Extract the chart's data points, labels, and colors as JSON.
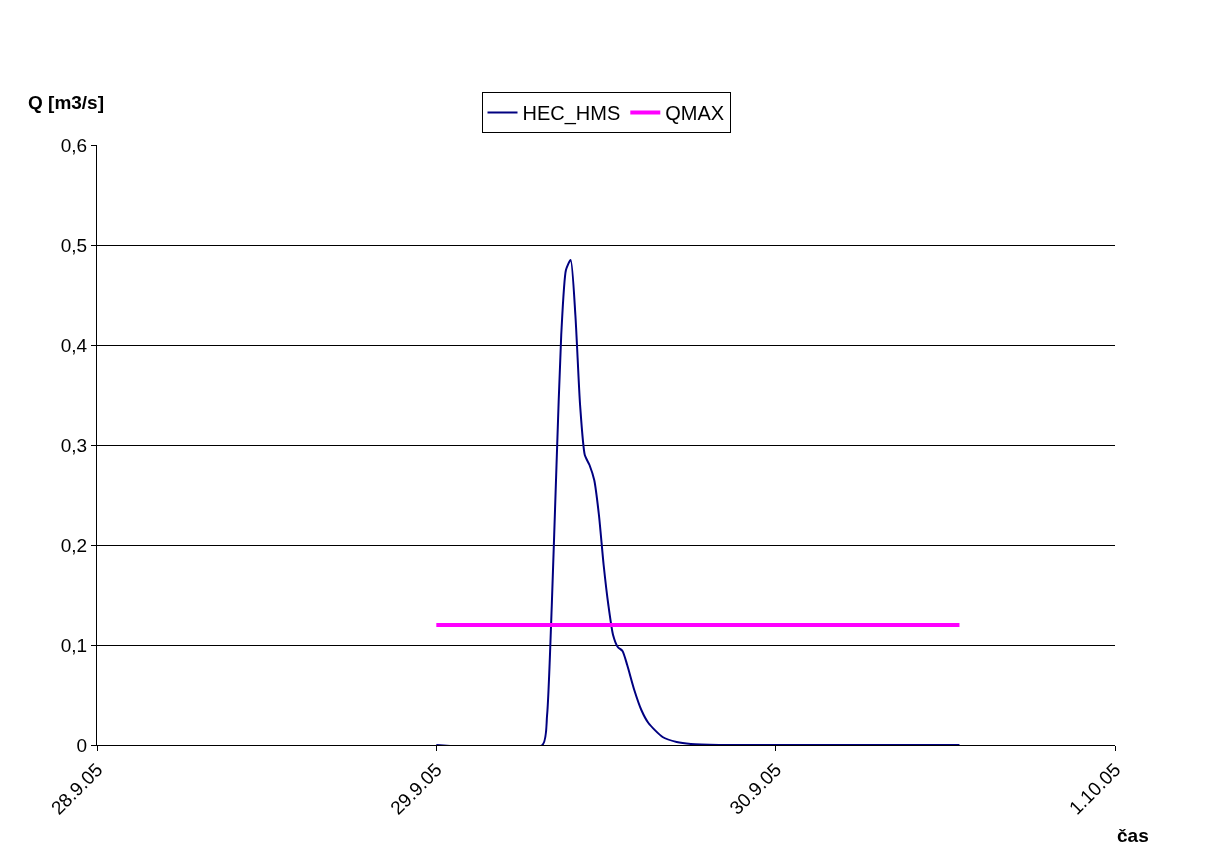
{
  "chart_data": {
    "type": "line",
    "xlabel": "čas",
    "ylabel": "Q [m3/s]",
    "series": [
      {
        "name": "HEC_HMS",
        "color": "#000080",
        "x": [
          "--09-29T00:00",
          "--09-29T07:30",
          "--09-29T07:50",
          "--09-29T08:10",
          "--09-29T08:30",
          "--09-29T08:50",
          "--09-29T09:10",
          "--09-29T09:30",
          "--09-29T09:50",
          "--09-29T10:10",
          "--09-29T10:30",
          "--09-29T10:50",
          "--09-29T11:10",
          "--09-29T11:30",
          "--09-29T11:50",
          "--09-29T12:10",
          "--09-29T12:30",
          "--09-29T12:50",
          "--09-29T13:10",
          "--09-29T13:30",
          "--09-29T14:00",
          "--09-29T14:30",
          "--09-29T15:00",
          "--09-29T16:00",
          "--09-29T17:00",
          "--09-29T18:00",
          "--09-29T20:00",
          "--09-30T13:00"
        ],
        "values": [
          0,
          0,
          0.03,
          0.14,
          0.28,
          0.41,
          0.475,
          0.485,
          0.43,
          0.34,
          0.29,
          0.28,
          0.265,
          0.23,
          0.18,
          0.14,
          0.11,
          0.098,
          0.094,
          0.08,
          0.055,
          0.035,
          0.022,
          0.008,
          0.003,
          0.001,
          0,
          0
        ]
      },
      {
        "name": "QMAX",
        "color": "#ff00ff",
        "x": [
          "--09-29T00:00",
          "--09-30T13:00"
        ],
        "values": [
          0.12,
          0.12
        ]
      }
    ],
    "xlim": [
      "--09-28",
      "--10-01"
    ],
    "xticks": [
      {
        "value": "--09-28",
        "label": "28.9.05"
      },
      {
        "value": "--09-29",
        "label": "29.9.05"
      },
      {
        "value": "--09-30",
        "label": "30.9.05"
      },
      {
        "value": "--10-01",
        "label": "1.10.05"
      }
    ],
    "ylim": [
      0,
      0.6
    ],
    "yticks": [
      {
        "value": 0,
        "label": "0"
      },
      {
        "value": 0.1,
        "label": "0,1"
      },
      {
        "value": 0.2,
        "label": "0,2"
      },
      {
        "value": 0.3,
        "label": "0,3"
      },
      {
        "value": 0.4,
        "label": "0,4"
      },
      {
        "value": 0.5,
        "label": "0,5"
      },
      {
        "value": 0.6,
        "label": "0,6"
      }
    ],
    "grid": "y",
    "legend": "top",
    "marker": "none",
    "line_style": "solid"
  }
}
